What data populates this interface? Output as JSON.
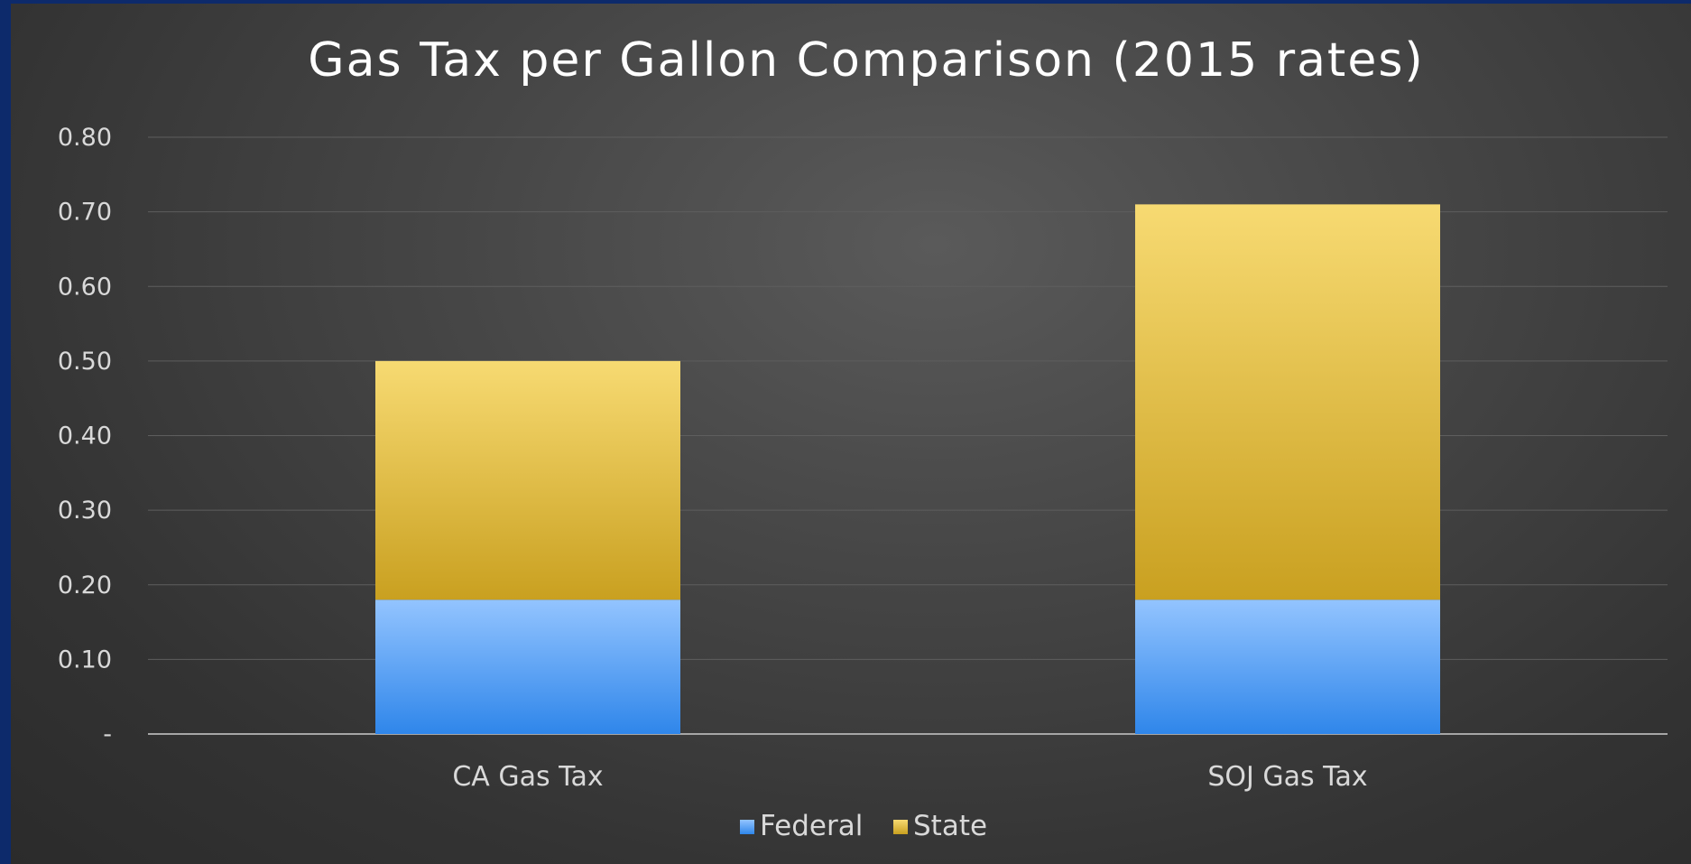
{
  "chart_data": {
    "type": "bar",
    "stacked": true,
    "title": "Gas Tax per Gallon Comparison (2015 rates)",
    "xlabel": "",
    "ylabel": "",
    "categories": [
      "CA Gas Tax",
      "SOJ Gas Tax"
    ],
    "series": [
      {
        "name": "Federal",
        "values": [
          0.18,
          0.18
        ],
        "color": "#5aa2f5"
      },
      {
        "name": "State",
        "values": [
          0.32,
          0.53
        ],
        "color": "#e2bf45"
      }
    ],
    "ylim": [
      0,
      0.8
    ],
    "yticks": [
      {
        "value": 0,
        "label": "-"
      },
      {
        "value": 0.1,
        "label": "0.10"
      },
      {
        "value": 0.2,
        "label": "0.20"
      },
      {
        "value": 0.3,
        "label": "0.30"
      },
      {
        "value": 0.4,
        "label": "0.40"
      },
      {
        "value": 0.5,
        "label": "0.50"
      },
      {
        "value": 0.6,
        "label": "0.60"
      },
      {
        "value": 0.7,
        "label": "0.70"
      },
      {
        "value": 0.8,
        "label": "0.80"
      }
    ],
    "grid": true,
    "legend_position": "bottom"
  }
}
